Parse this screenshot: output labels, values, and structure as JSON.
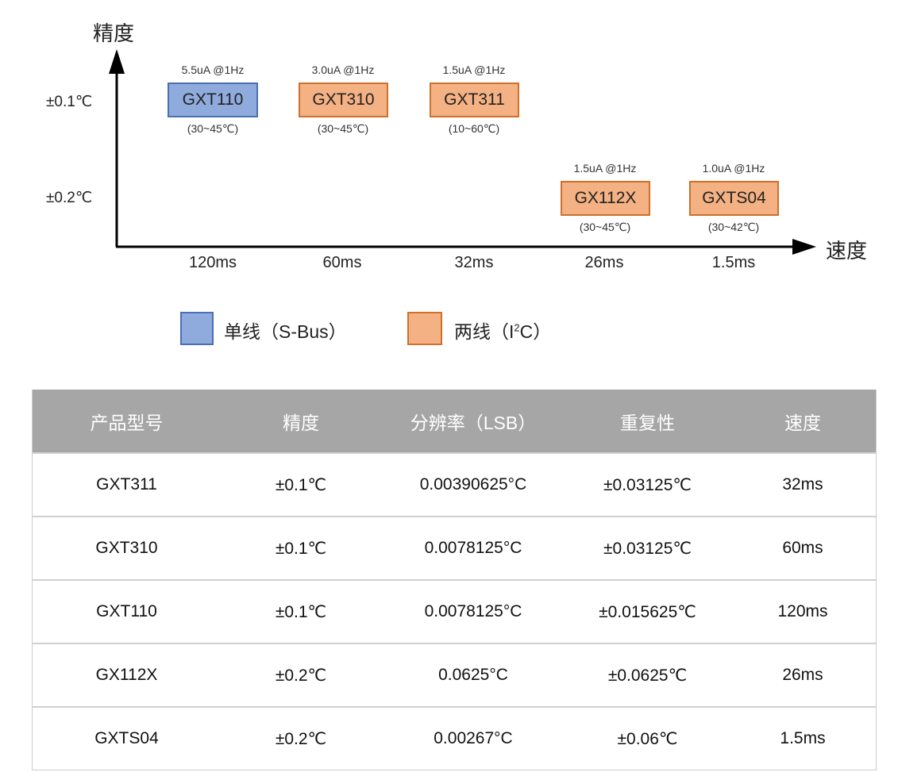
{
  "diagram": {
    "y_axis_label": "精度",
    "x_axis_label": "速度",
    "y_ticks": [
      "±0.1℃",
      "±0.2℃"
    ],
    "x_ticks": [
      "120ms",
      "60ms",
      "32ms",
      "26ms",
      "1.5ms"
    ],
    "products": [
      {
        "name": "GXT110",
        "current": "5.5uA @1Hz",
        "range": "(30~45℃)",
        "interface": "single",
        "color": "#8faadc"
      },
      {
        "name": "GXT310",
        "current": "3.0uA @1Hz",
        "range": "(30~45℃)",
        "interface": "two",
        "color": "#f4b183"
      },
      {
        "name": "GXT311",
        "current": "1.5uA @1Hz",
        "range": "(10~60℃)",
        "interface": "two",
        "color": "#f4b183"
      },
      {
        "name": "GX112X",
        "current": "1.5uA @1Hz",
        "range": "(30~45℃)",
        "interface": "two",
        "color": "#f4b183"
      },
      {
        "name": "GXTS04",
        "current": "1.0uA @1Hz",
        "range": "(30~42℃)",
        "interface": "two",
        "color": "#f4b183"
      }
    ],
    "legend": [
      {
        "label": "单线（S-Bus）",
        "color": "#8faadc"
      },
      {
        "label": "两线（I",
        "sup": "2",
        "suffix": "C）",
        "color": "#f4b183"
      }
    ]
  },
  "table": {
    "headers": [
      "产品型号",
      "精度",
      "分辨率（LSB）",
      "重复性",
      "速度"
    ],
    "rows": [
      [
        "GXT311",
        "±0.1℃",
        "0.00390625°C",
        "±0.03125℃",
        "32ms"
      ],
      [
        "GXT310",
        "±0.1℃",
        "0.0078125°C",
        "±0.03125℃",
        "60ms"
      ],
      [
        "GXT110",
        "±0.1℃",
        "0.0078125°C",
        "±0.015625℃",
        "120ms"
      ],
      [
        "GX112X",
        "±0.2℃",
        "0.0625°C",
        "±0.0625℃",
        "26ms"
      ],
      [
        "GXTS04",
        "±0.2℃",
        "0.00267°C",
        "±0.06℃",
        "1.5ms"
      ]
    ]
  }
}
